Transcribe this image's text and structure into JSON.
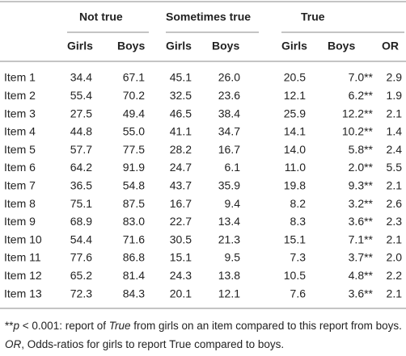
{
  "header": {
    "groups": [
      "Not true",
      "Sometimes true",
      "True"
    ],
    "columns": [
      "Girls",
      "Boys",
      "Girls",
      "Boys",
      "Girls",
      "Boys",
      "OR"
    ]
  },
  "table": {
    "rows": [
      [
        "Item 1",
        "34.4",
        "67.1",
        "45.1",
        "26.0",
        "20.5",
        "7.0**",
        "2.9"
      ],
      [
        "Item 2",
        "55.4",
        "70.2",
        "32.5",
        "23.6",
        "12.1",
        "6.2**",
        "1.9"
      ],
      [
        "Item 3",
        "27.5",
        "49.4",
        "46.5",
        "38.4",
        "25.9",
        "12.2**",
        "2.1"
      ],
      [
        "Item 4",
        "44.8",
        "55.0",
        "41.1",
        "34.7",
        "14.1",
        "10.2**",
        "1.4"
      ],
      [
        "Item 5",
        "57.7",
        "77.5",
        "28.2",
        "16.7",
        "14.0",
        "5.8**",
        "2.4"
      ],
      [
        "Item 6",
        "64.2",
        "91.9",
        "24.7",
        "6.1",
        "11.0",
        "2.0**",
        "5.5"
      ],
      [
        "Item 7",
        "36.5",
        "54.8",
        "43.7",
        "35.9",
        "19.8",
        "9.3**",
        "2.1"
      ],
      [
        "Item 8",
        "75.1",
        "87.5",
        "16.7",
        "9.4",
        "8.2",
        "3.2**",
        "2.6"
      ],
      [
        "Item 9",
        "68.9",
        "83.0",
        "22.7",
        "13.4",
        "8.3",
        "3.6**",
        "2.3"
      ],
      [
        "Item 10",
        "54.4",
        "71.6",
        "30.5",
        "21.3",
        "15.1",
        "7.1**",
        "2.1"
      ],
      [
        "Item 11",
        "77.6",
        "86.8",
        "15.1",
        "9.5",
        "7.3",
        "3.7**",
        "2.0"
      ],
      [
        "Item 12",
        "65.2",
        "81.4",
        "24.3",
        "13.8",
        "10.5",
        "4.8**",
        "2.2"
      ],
      [
        "Item 13",
        "72.3",
        "84.3",
        "20.1",
        "12.1",
        "7.6",
        "3.6**",
        "2.1"
      ]
    ]
  },
  "footnote": {
    "parts": [
      "**",
      "p",
      " < 0.001: report of ",
      "True",
      " from girls on an item compared to this report from boys. ",
      "OR",
      ", Odds-ratios for girls to report True compared to boys."
    ]
  }
}
